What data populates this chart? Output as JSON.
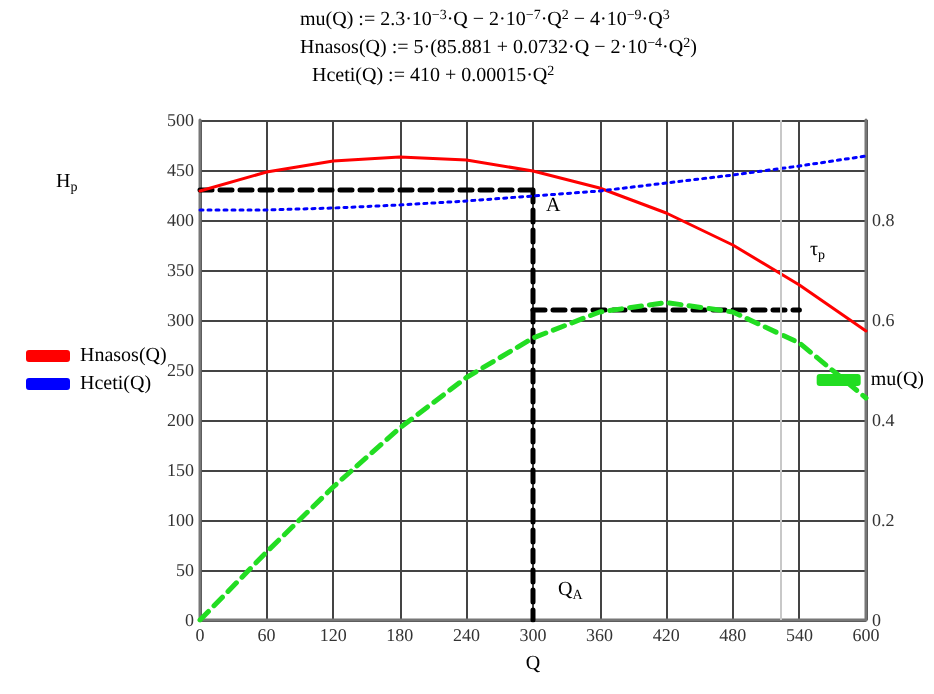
{
  "chart_data": {
    "type": "line",
    "xlabel": "Q",
    "x": [
      0,
      60,
      120,
      180,
      240,
      300,
      360,
      420,
      480,
      540,
      600
    ],
    "series": [
      {
        "name": "Hnasos(Q)",
        "color": "#ff0000",
        "line_style": "solid",
        "values": [
          429,
          448,
          459,
          463,
          460,
          449,
          432,
          407,
          375,
          335,
          289
        ]
      },
      {
        "name": "Hceti(Q)",
        "color": "#0000ff",
        "line_style": "dotted",
        "values": [
          410,
          410,
          412,
          415,
          419,
          424,
          429,
          437,
          445,
          454,
          464
        ]
      },
      {
        "name": "mu(Q)",
        "color": "#22dd22",
        "line_style": "dashed",
        "axis": "y2",
        "values": [
          0,
          0.136,
          0.266,
          0.384,
          0.485,
          0.564,
          0.616,
          0.635,
          0.616,
          0.554,
          0.444
        ]
      },
      {
        "color": "#000000",
        "line_style": "dashed",
        "x": [
          0,
          300
        ],
        "values": [
          430,
          430
        ]
      },
      {
        "color": "#000000",
        "line_style": "dashed",
        "x": [
          300,
          300
        ],
        "values": [
          430,
          0
        ]
      },
      {
        "color": "#000000",
        "line_style": "dashed",
        "axis": "y2",
        "x": [
          300,
          540
        ],
        "values": [
          0.62,
          0.62
        ]
      }
    ],
    "xlim": [
      0,
      600
    ],
    "xticks": [
      0,
      60,
      120,
      180,
      240,
      300,
      360,
      420,
      480,
      540,
      600
    ],
    "ylim": [
      0,
      500
    ],
    "yticks": [
      0,
      50,
      100,
      150,
      200,
      250,
      300,
      350,
      400,
      450,
      500
    ],
    "y2lim": [
      0,
      1
    ],
    "y2ticks": [
      0,
      0.2,
      0.4,
      0.6,
      0.8
    ],
    "ref_lines": [
      {
        "axis": "x",
        "value": 523,
        "color": "#c8c8c8"
      }
    ],
    "annotations": [
      "mu(Q) := 2.3·10$^{−3}$·Q − 2·10$^{−7}$·Q$^{2}$ − 4·10$^{−9}$·Q$^{3}$",
      "Hnasos(Q) := 5·(85.881 + 0.0732·Q − 2·10$^{−4}$·Q$^{2}$)",
      "Hceti(Q) := 410 + 0.00015·Q$^{2}$",
      "H$_{p}$",
      "A",
      "τ$_{p}$",
      "Q$_{A}$"
    ],
    "grid": true,
    "legend": "left",
    "marker": "none"
  }
}
